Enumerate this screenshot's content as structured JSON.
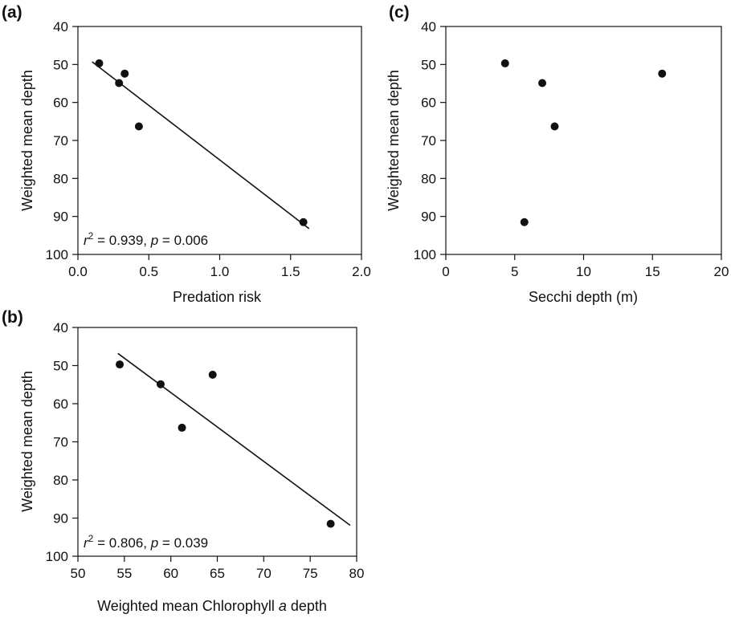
{
  "chart_data": [
    {
      "panel": "(a)",
      "type": "scatter",
      "xlabel": "Predation risk",
      "ylabel": "Weighted mean depth",
      "xlim": [
        0.0,
        2.0
      ],
      "ylim": [
        100,
        40
      ],
      "y_inverted": true,
      "xticks": [
        "0.0",
        "0.5",
        "1.0",
        "1.5",
        "2.0"
      ],
      "yticks": [
        "40",
        "50",
        "60",
        "70",
        "80",
        "90",
        "100"
      ],
      "points": [
        {
          "x": 0.15,
          "y": 49.7
        },
        {
          "x": 0.29,
          "y": 54.9
        },
        {
          "x": 0.33,
          "y": 52.4
        },
        {
          "x": 0.43,
          "y": 66.3
        },
        {
          "x": 1.59,
          "y": 91.5
        }
      ],
      "fit_line": [
        [
          0.1,
          49.3
        ],
        [
          1.63,
          93.2
        ]
      ],
      "stats": {
        "r2_label": "r",
        "r2_sup": "2",
        "r2_value": " = 0.939, ",
        "p_label": "p",
        "p_value": " = 0.006"
      }
    },
    {
      "panel": "(b)",
      "type": "scatter",
      "xlabel_prefix": "Weighted mean Chlorophyll ",
      "xlabel_italic": "a",
      "xlabel_suffix": " depth",
      "ylabel": "Weighted mean depth",
      "xlim": [
        50,
        80
      ],
      "ylim": [
        100,
        40
      ],
      "y_inverted": true,
      "xticks": [
        "50",
        "55",
        "60",
        "65",
        "70",
        "75",
        "80"
      ],
      "yticks": [
        "40",
        "50",
        "60",
        "70",
        "80",
        "90",
        "100"
      ],
      "points": [
        {
          "x": 54.5,
          "y": 49.7
        },
        {
          "x": 58.9,
          "y": 54.9
        },
        {
          "x": 61.2,
          "y": 66.3
        },
        {
          "x": 64.5,
          "y": 52.4
        },
        {
          "x": 77.2,
          "y": 91.5
        }
      ],
      "fit_line": [
        [
          54.3,
          46.8
        ],
        [
          79.3,
          91.9
        ]
      ],
      "stats": {
        "r2_label": "r",
        "r2_sup": "2",
        "r2_value": " = 0.806, ",
        "p_label": "p",
        "p_value": " = 0.039"
      }
    },
    {
      "panel": "(c)",
      "type": "scatter",
      "xlabel": "Secchi depth (m)",
      "ylabel": "Weighted mean depth",
      "xlim": [
        0,
        20
      ],
      "ylim": [
        100,
        40
      ],
      "y_inverted": true,
      "xticks": [
        "0",
        "5",
        "10",
        "15",
        "20"
      ],
      "yticks": [
        "40",
        "50",
        "60",
        "70",
        "80",
        "90",
        "100"
      ],
      "points": [
        {
          "x": 4.3,
          "y": 49.7
        },
        {
          "x": 7.0,
          "y": 54.9
        },
        {
          "x": 7.9,
          "y": 66.3
        },
        {
          "x": 5.7,
          "y": 91.5
        },
        {
          "x": 15.7,
          "y": 52.4
        }
      ],
      "fit_line": null,
      "stats": null
    }
  ]
}
